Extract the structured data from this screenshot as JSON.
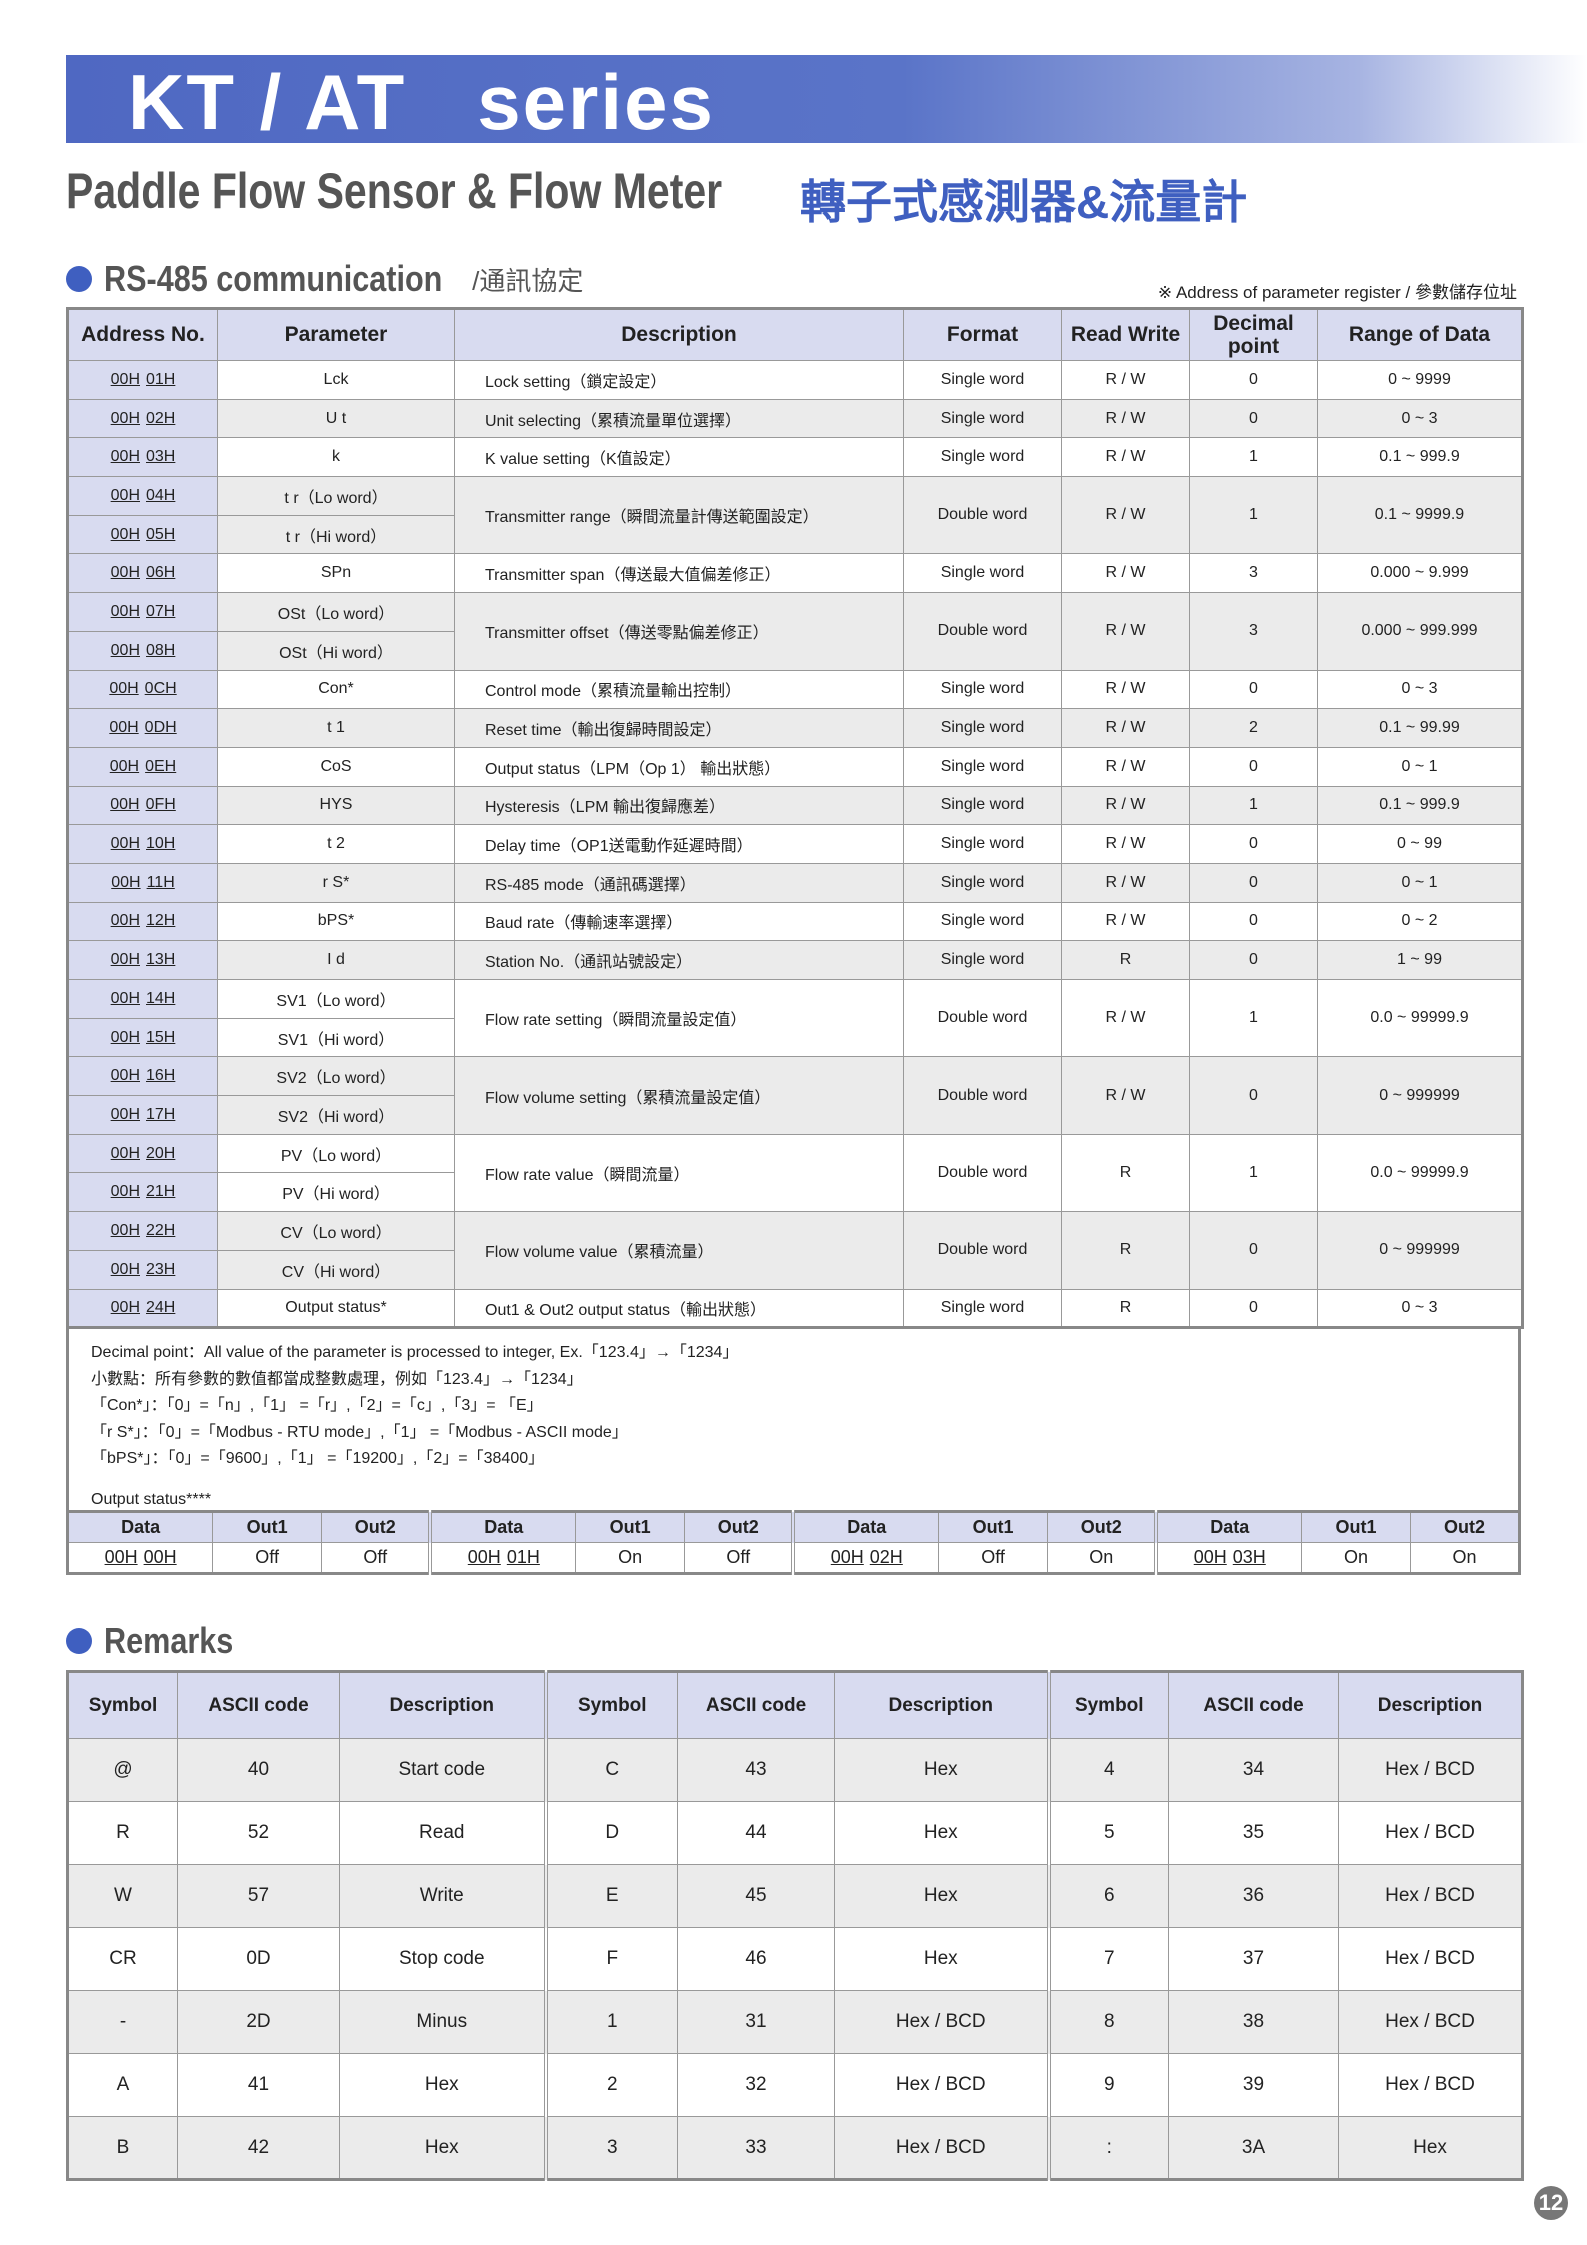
{
  "banner": {
    "title": "KT / AT   series"
  },
  "subtitle": {
    "en": "Paddle Flow Sensor & Flow Meter",
    "cn": "轉子式感測器&流量計"
  },
  "section1": {
    "title": "RS-485 communication",
    "cn": "/通訊協定",
    "note": "※ Address of parameter register / 參數儲存位址"
  },
  "main_table": {
    "headers": [
      "Address No.",
      "Parameter",
      "Description",
      "Format",
      "Read Write",
      "Decimal point",
      "Range of Data"
    ],
    "rows": [
      {
        "addr": [
          [
            "00H 01H",
            "Lck"
          ]
        ],
        "desc": "Lock setting（鎖定設定）",
        "format": "Single word",
        "rw": "R / W",
        "dp": "0",
        "range": "0 ~ 9999"
      },
      {
        "addr": [
          [
            "00H 02H",
            "U t"
          ]
        ],
        "desc": "Unit selecting（累積流量單位選擇）",
        "format": "Single word",
        "rw": "R / W",
        "dp": "0",
        "range": "0 ~ 3"
      },
      {
        "addr": [
          [
            "00H 03H",
            "k"
          ]
        ],
        "desc": "K value setting（K值設定）",
        "format": "Single word",
        "rw": "R / W",
        "dp": "1",
        "range": "0.1 ~ 999.9"
      },
      {
        "addr": [
          [
            "00H 04H",
            "t r（Lo word）"
          ],
          [
            "00H 05H",
            "t r（Hi word）"
          ]
        ],
        "desc": "Transmitter range（瞬間流量計傳送範圍設定）",
        "format": "Double word",
        "rw": "R / W",
        "dp": "1",
        "range": "0.1 ~ 9999.9"
      },
      {
        "addr": [
          [
            "00H 06H",
            "SPn"
          ]
        ],
        "desc": "Transmitter span（傳送最大值偏差修正）",
        "format": "Single word",
        "rw": "R / W",
        "dp": "3",
        "range": "0.000 ~ 9.999"
      },
      {
        "addr": [
          [
            "00H 07H",
            "OSt（Lo word）"
          ],
          [
            "00H 08H",
            "OSt（Hi word）"
          ]
        ],
        "desc": "Transmitter offset（傳送零點偏差修正）",
        "format": "Double word",
        "rw": "R / W",
        "dp": "3",
        "range": "0.000 ~ 999.999"
      },
      {
        "addr": [
          [
            "00H 0CH",
            "Con*"
          ]
        ],
        "desc": "Control mode（累積流量輸出控制）",
        "format": "Single word",
        "rw": "R / W",
        "dp": "0",
        "range": "0 ~ 3"
      },
      {
        "addr": [
          [
            "00H 0DH",
            "t 1"
          ]
        ],
        "desc": "Reset time（輸出復歸時間設定）",
        "format": "Single word",
        "rw": "R / W",
        "dp": "2",
        "range": "0.1 ~ 99.99"
      },
      {
        "addr": [
          [
            "00H 0EH",
            "CoS"
          ]
        ],
        "desc": "Output status（LPM（Op 1） 輸出狀態）",
        "format": "Single word",
        "rw": "R / W",
        "dp": "0",
        "range": "0 ~ 1"
      },
      {
        "addr": [
          [
            "00H 0FH",
            "HYS"
          ]
        ],
        "desc": "Hysteresis（LPM 輸出復歸應差）",
        "format": "Single word",
        "rw": "R / W",
        "dp": "1",
        "range": "0.1 ~ 999.9"
      },
      {
        "addr": [
          [
            "00H 10H",
            "t 2"
          ]
        ],
        "desc": "Delay time（OP1送電動作延遲時間）",
        "format": "Single word",
        "rw": "R / W",
        "dp": "0",
        "range": "0 ~ 99"
      },
      {
        "addr": [
          [
            "00H 11H",
            "r S*"
          ]
        ],
        "desc": "RS-485 mode（通訊碼選擇）",
        "format": "Single word",
        "rw": "R / W",
        "dp": "0",
        "range": "0 ~ 1"
      },
      {
        "addr": [
          [
            "00H 12H",
            "bPS*"
          ]
        ],
        "desc": "Baud rate（傳輸速率選擇）",
        "format": "Single word",
        "rw": "R / W",
        "dp": "0",
        "range": "0 ~ 2"
      },
      {
        "addr": [
          [
            "00H 13H",
            "I d"
          ]
        ],
        "desc": "Station No.（通訊站號設定）",
        "format": "Single word",
        "rw": "R",
        "dp": "0",
        "range": "1 ~ 99"
      },
      {
        "addr": [
          [
            "00H 14H",
            "SV1（Lo word）"
          ],
          [
            "00H 15H",
            "SV1（Hi word）"
          ]
        ],
        "desc": "Flow rate setting（瞬間流量設定值）",
        "format": "Double word",
        "rw": "R / W",
        "dp": "1",
        "range": "0.0 ~ 99999.9"
      },
      {
        "addr": [
          [
            "00H 16H",
            "SV2（Lo word）"
          ],
          [
            "00H 17H",
            "SV2（Hi word）"
          ]
        ],
        "desc": "Flow volume setting（累積流量設定值）",
        "format": "Double word",
        "rw": "R / W",
        "dp": "0",
        "range": "0 ~ 999999"
      },
      {
        "addr": [
          [
            "00H 20H",
            "PV（Lo word）"
          ],
          [
            "00H 21H",
            "PV（Hi word）"
          ]
        ],
        "desc": "Flow rate value（瞬間流量）",
        "format": "Double word",
        "rw": "R",
        "dp": "1",
        "range": "0.0 ~ 99999.9"
      },
      {
        "addr": [
          [
            "00H 22H",
            "CV（Lo word）"
          ],
          [
            "00H 23H",
            "CV（Hi word）"
          ]
        ],
        "desc": "Flow volume value（累積流量）",
        "format": "Double word",
        "rw": "R",
        "dp": "0",
        "range": "0 ~ 999999"
      },
      {
        "addr": [
          [
            "00H 24H",
            "Output status*"
          ]
        ],
        "desc": "Out1 & Out2 output status（輸出狀態）",
        "format": "Single word",
        "rw": "R",
        "dp": "0",
        "range": "0 ~ 3"
      }
    ]
  },
  "notes": {
    "lines": [
      "Decimal point：All value of the parameter is processed to integer, Ex.「123.4」→「1234」",
      "小數點：所有參數的數值都當成整數處理，例如「123.4」→「1234」",
      "「Con*」：「0」=「n」,「1」 =「r」,「2」=「c」,「3」= 「E」",
      "「r S*」：「0」=「Modbus - RTU mode」,「1」 =「Modbus - ASCII mode」",
      "「bPS*」：「0」=「9600」,「1」 =「19200」,「2」=「38400」"
    ],
    "output_status_label": "Output status****"
  },
  "output_status": {
    "headers": [
      "Data",
      "Out1",
      "Out2"
    ],
    "groups": [
      [
        "00H 00H",
        "Off",
        "Off"
      ],
      [
        "00H 01H",
        "On",
        "Off"
      ],
      [
        "00H 02H",
        "Off",
        "On"
      ],
      [
        "00H 03H",
        "On",
        "On"
      ]
    ]
  },
  "remarks": {
    "title": "Remarks",
    "headers": [
      "Symbol",
      "ASCII code",
      "Description"
    ],
    "rows": [
      [
        [
          "@",
          "40",
          "Start code"
        ],
        [
          "C",
          "43",
          "Hex"
        ],
        [
          "4",
          "34",
          "Hex / BCD"
        ]
      ],
      [
        [
          "R",
          "52",
          "Read"
        ],
        [
          "D",
          "44",
          "Hex"
        ],
        [
          "5",
          "35",
          "Hex / BCD"
        ]
      ],
      [
        [
          "W",
          "57",
          "Write"
        ],
        [
          "E",
          "45",
          "Hex"
        ],
        [
          "6",
          "36",
          "Hex / BCD"
        ]
      ],
      [
        [
          "CR",
          "0D",
          "Stop code"
        ],
        [
          "F",
          "46",
          "Hex"
        ],
        [
          "7",
          "37",
          "Hex / BCD"
        ]
      ],
      [
        [
          "-",
          "2D",
          "Minus"
        ],
        [
          "1",
          "31",
          "Hex / BCD"
        ],
        [
          "8",
          "38",
          "Hex / BCD"
        ]
      ],
      [
        [
          "A",
          "41",
          "Hex"
        ],
        [
          "2",
          "32",
          "Hex / BCD"
        ],
        [
          "9",
          "39",
          "Hex / BCD"
        ]
      ],
      [
        [
          "B",
          "42",
          "Hex"
        ],
        [
          "3",
          "33",
          "Hex / BCD"
        ],
        [
          ":",
          "3A",
          "Hex"
        ]
      ]
    ]
  },
  "page_number": "12",
  "colors": {
    "banner": "#4f68c2",
    "accent": "#3f5fc0",
    "header_bg": "#d8dbf0",
    "row_alt": "#ebebeb"
  }
}
